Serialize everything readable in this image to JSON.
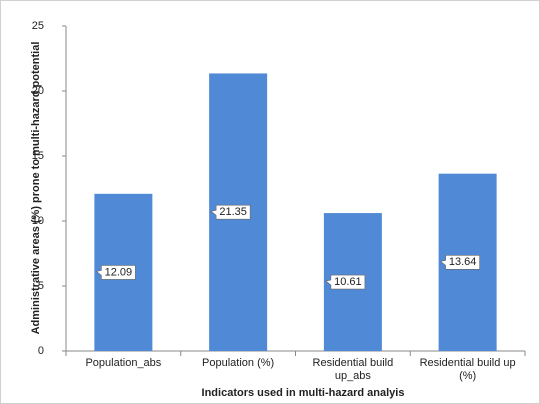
{
  "chart_data": {
    "type": "bar",
    "categories": [
      "Population_abs",
      "Population (%)",
      "Residential build up_abs",
      "Residential build up (%)"
    ],
    "values": [
      12.09,
      21.35,
      10.61,
      13.64
    ],
    "color": "#5089d6",
    "ylim": [
      0,
      25
    ],
    "yticks": [
      0,
      5,
      10,
      15,
      20,
      25
    ],
    "y_label": "Administrative areas (%) prone to multi-hazard  potential",
    "x_label": "Indicators used in multi-hazard analyis"
  }
}
